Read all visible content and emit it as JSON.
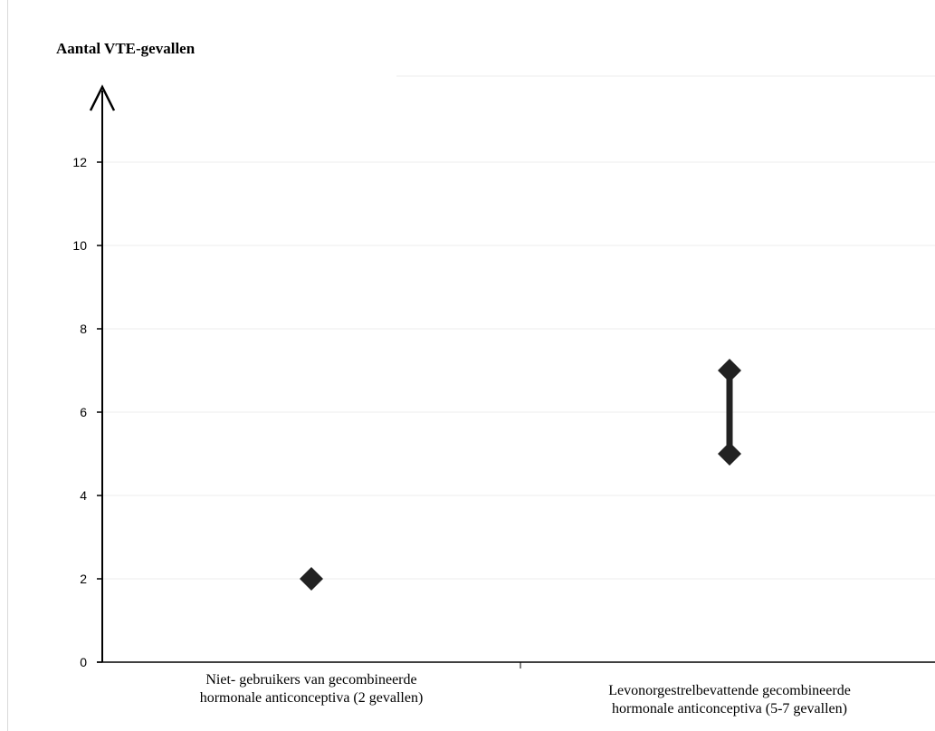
{
  "chart_data": {
    "type": "scatter",
    "title": "Aantal VTE-gevallen",
    "xlabel": "",
    "ylabel": "",
    "ylim": [
      0,
      13
    ],
    "yticks": [
      "0",
      "2",
      "4",
      "6",
      "8",
      "10",
      "12"
    ],
    "ytick_values": [
      0,
      2,
      4,
      6,
      8,
      10,
      12
    ],
    "grid": true,
    "categories": [
      {
        "label_line1": "Niet- gebruikers van gecombineerde",
        "label_line2": "hormonale anticonceptiva (2 gevallen)",
        "low": 2,
        "high": 2
      },
      {
        "label_line1": "Levonorgestrelbevattende gecombineerde",
        "label_line2": "hormonale anticonceptiva (5-7 gevallen)",
        "low": 5,
        "high": 7
      }
    ],
    "colors": {
      "marker": "#222222",
      "axis": "#000000",
      "grid": "#eeeeee"
    }
  }
}
